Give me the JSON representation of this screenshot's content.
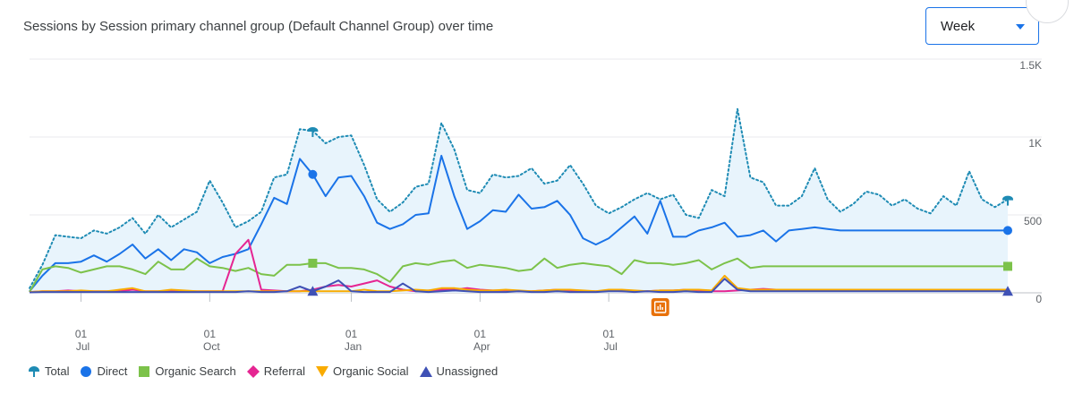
{
  "card": {
    "title": "Sessions by Session primary channel group (Default Channel Group) over time",
    "period_select": {
      "value": "Week"
    }
  },
  "colors": {
    "total": "#1e8bb4",
    "direct": "#1a73e8",
    "organic_search": "#7cc24a",
    "referral": "#e52592",
    "organic_social": "#f9ab00",
    "unassigned": "#3f51b5",
    "fill": "#e8f4fc",
    "grid": "#e8eaed",
    "axis_text": "#5f6368",
    "anomaly": "#e8710a"
  },
  "legend": [
    {
      "key": "total",
      "label": "Total",
      "icon": "pin-marker-icon"
    },
    {
      "key": "direct",
      "label": "Direct",
      "icon": "circle-marker-icon"
    },
    {
      "key": "organic_search",
      "label": "Organic Search",
      "icon": "square-marker-icon"
    },
    {
      "key": "referral",
      "label": "Referral",
      "icon": "diamond-marker-icon"
    },
    {
      "key": "organic_social",
      "label": "Organic Social",
      "icon": "down-triangle-marker-icon"
    },
    {
      "key": "unassigned",
      "label": "Unassigned",
      "icon": "up-triangle-marker-icon"
    }
  ],
  "anomaly_marker": {
    "icon": "insight-chart-icon",
    "week_index": 49
  },
  "chart_data": {
    "type": "line",
    "title": "Sessions by Session primary channel group (Default Channel Group) over time",
    "xlabel": "",
    "ylabel": "",
    "ylim": [
      0,
      1500
    ],
    "yticks": [
      {
        "value": 0,
        "label": "0"
      },
      {
        "value": 500,
        "label": "500"
      },
      {
        "value": 1000,
        "label": "1K"
      },
      {
        "value": 1500,
        "label": "1.5K"
      }
    ],
    "xticks": [
      {
        "week_index": 4,
        "day": "01",
        "month": "Jul"
      },
      {
        "week_index": 14,
        "day": "01",
        "month": "Oct"
      },
      {
        "week_index": 25,
        "day": "01",
        "month": "Jan"
      },
      {
        "week_index": 35,
        "day": "01",
        "month": "Apr"
      },
      {
        "week_index": 45,
        "day": "01",
        "month": "Jul"
      }
    ],
    "grid": true,
    "legend_position": "bottom",
    "series": [
      {
        "key": "total",
        "name": "Total",
        "style": "dotted",
        "filled": true,
        "end_marker": "pin",
        "values": [
          30,
          180,
          370,
          360,
          350,
          400,
          380,
          420,
          480,
          380,
          500,
          420,
          470,
          520,
          720,
          580,
          420,
          460,
          520,
          740,
          760,
          1050,
          1040,
          960,
          1000,
          1010,
          820,
          600,
          520,
          580,
          680,
          700,
          1090,
          920,
          660,
          640,
          760,
          740,
          750,
          800,
          700,
          720,
          820,
          700,
          560,
          510,
          550,
          600,
          640,
          600,
          630,
          500,
          480,
          660,
          620,
          1180,
          740,
          710,
          560,
          560,
          620,
          800,
          600,
          520,
          570,
          650,
          630,
          560,
          600,
          540,
          510,
          620,
          560,
          780,
          600,
          550,
          600
        ]
      },
      {
        "key": "direct",
        "name": "Direct",
        "style": "solid",
        "filled": false,
        "end_marker": "circle",
        "values": [
          10,
          110,
          190,
          190,
          200,
          240,
          200,
          250,
          310,
          220,
          280,
          210,
          280,
          260,
          190,
          230,
          250,
          280,
          440,
          610,
          570,
          860,
          760,
          620,
          740,
          750,
          620,
          450,
          410,
          440,
          500,
          510,
          880,
          620,
          410,
          460,
          530,
          520,
          630,
          540,
          550,
          590,
          500,
          350,
          310,
          350,
          420,
          490,
          380,
          590,
          360,
          360,
          400,
          420,
          450,
          360,
          370,
          400,
          330,
          400,
          410,
          420,
          410,
          400,
          400,
          400,
          400,
          400,
          400,
          400,
          400,
          400,
          400,
          400,
          400,
          400,
          400
        ]
      },
      {
        "key": "organic_search",
        "name": "Organic Search",
        "style": "solid",
        "filled": false,
        "end_marker": "square",
        "values": [
          5,
          150,
          170,
          160,
          130,
          150,
          170,
          170,
          150,
          120,
          200,
          150,
          150,
          220,
          170,
          160,
          140,
          160,
          120,
          110,
          180,
          180,
          190,
          190,
          160,
          160,
          150,
          120,
          70,
          170,
          190,
          180,
          200,
          210,
          160,
          180,
          170,
          160,
          140,
          150,
          220,
          160,
          180,
          190,
          180,
          170,
          120,
          210,
          190,
          190,
          180,
          190,
          210,
          150,
          190,
          220,
          160,
          170,
          170,
          170,
          170,
          170,
          170,
          170,
          170,
          170,
          170,
          170,
          170,
          170,
          170,
          170,
          170,
          170,
          170,
          170,
          170
        ]
      },
      {
        "key": "referral",
        "name": "Referral",
        "style": "solid",
        "filled": false,
        "end_marker": "none",
        "values": [
          5,
          10,
          10,
          15,
          10,
          10,
          10,
          10,
          20,
          10,
          10,
          15,
          10,
          10,
          10,
          10,
          250,
          340,
          20,
          15,
          10,
          10,
          20,
          40,
          50,
          40,
          60,
          80,
          40,
          20,
          10,
          15,
          20,
          20,
          30,
          20,
          15,
          15,
          10,
          10,
          15,
          20,
          15,
          10,
          10,
          15,
          10,
          10,
          10,
          15,
          15,
          20,
          15,
          10,
          10,
          15,
          20,
          25,
          20,
          15,
          15,
          15,
          15,
          15,
          15,
          15,
          15,
          15,
          15,
          15,
          15,
          15,
          15,
          15,
          15,
          15,
          15
        ]
      },
      {
        "key": "organic_social",
        "name": "Organic Social",
        "style": "solid",
        "filled": false,
        "end_marker": "none",
        "values": [
          5,
          10,
          10,
          10,
          15,
          10,
          10,
          20,
          30,
          10,
          10,
          20,
          15,
          10,
          10,
          10,
          10,
          10,
          10,
          10,
          10,
          10,
          10,
          10,
          10,
          10,
          20,
          10,
          10,
          15,
          20,
          15,
          30,
          30,
          20,
          15,
          15,
          20,
          15,
          10,
          15,
          20,
          20,
          15,
          10,
          20,
          20,
          15,
          10,
          15,
          15,
          20,
          20,
          15,
          110,
          30,
          20,
          20,
          20,
          20,
          20,
          20,
          20,
          20,
          20,
          20,
          20,
          20,
          20,
          20,
          20,
          20,
          20,
          20,
          20,
          20,
          20
        ]
      },
      {
        "key": "unassigned",
        "name": "Unassigned",
        "style": "solid",
        "filled": false,
        "end_marker": "up-triangle",
        "values": [
          3,
          5,
          5,
          5,
          5,
          5,
          5,
          5,
          5,
          5,
          5,
          5,
          5,
          5,
          5,
          5,
          5,
          10,
          5,
          5,
          10,
          40,
          10,
          40,
          80,
          10,
          5,
          5,
          5,
          60,
          10,
          5,
          10,
          15,
          10,
          5,
          5,
          5,
          10,
          5,
          5,
          10,
          5,
          5,
          5,
          10,
          10,
          5,
          10,
          5,
          5,
          10,
          5,
          5,
          90,
          20,
          10,
          10,
          10,
          10,
          10,
          10,
          10,
          10,
          10,
          10,
          10,
          10,
          10,
          10,
          10,
          10,
          10,
          10,
          10,
          10,
          10
        ]
      }
    ]
  }
}
